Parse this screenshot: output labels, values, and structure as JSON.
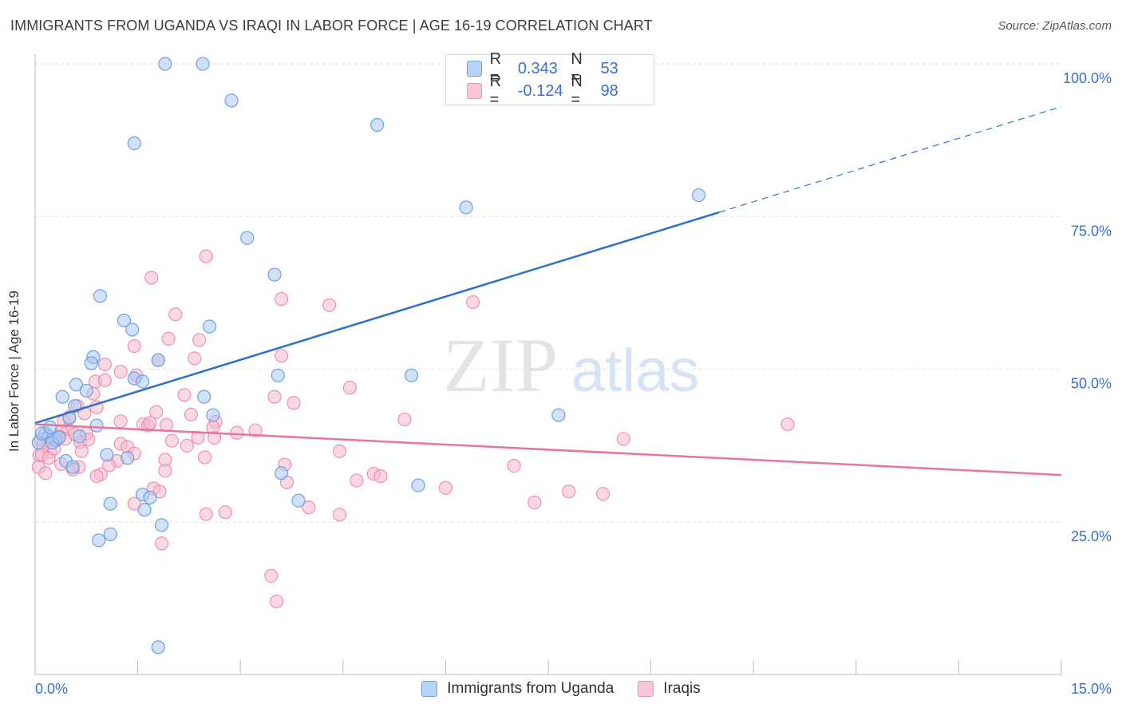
{
  "header": {
    "title": "IMMIGRANTS FROM UGANDA VS IRAQI IN LABOR FORCE | AGE 16-19 CORRELATION CHART",
    "source": "Source: ZipAtlas.com"
  },
  "watermark": {
    "zip": "ZIP",
    "atlas": "atlas"
  },
  "legend_top": {
    "rows": [
      {
        "r_label": "R =",
        "r_value": "0.343",
        "n_label": "N =",
        "n_value": "53"
      },
      {
        "r_label": "R =",
        "r_value": "-0.124",
        "n_label": "N =",
        "n_value": "98"
      }
    ]
  },
  "chart_data": {
    "type": "scatter",
    "title": "IMMIGRANTS FROM UGANDA VS IRAQI IN LABOR FORCE | AGE 16-19 CORRELATION CHART",
    "ylabel": "In Labor Force | Age 16-19",
    "xlim": [
      0,
      15
    ],
    "ylim": [
      0,
      102
    ],
    "x_tick_labels": [
      "0.0%",
      "15.0%"
    ],
    "y_ticks": [
      25,
      50,
      75,
      100
    ],
    "y_tick_labels": [
      "25.0%",
      "50.0%",
      "75.0%",
      "100.0%"
    ],
    "grid": true,
    "legend_position": "top-center",
    "colors": {
      "uganda_fill": "#a9c8f2",
      "uganda_stroke": "#6f9fe0",
      "uganda_line": "#2f6fcc",
      "iraqi_fill": "#f7b9cc",
      "iraqi_stroke": "#ee8fae",
      "iraqi_line": "#e8739c",
      "tick_text": "#3a6fd0",
      "grid": "#e3e3e3"
    },
    "series": [
      {
        "name": "Immigrants from Uganda",
        "r": 0.343,
        "n": 53,
        "trend": {
          "x0": 0,
          "y0": 41.2,
          "x1": 10.0,
          "y1": 75.7,
          "dash_to_x": 15.0,
          "dash_to_y": 93.0
        },
        "points": [
          [
            1.9,
            100
          ],
          [
            2.45,
            100
          ],
          [
            2.87,
            94
          ],
          [
            5.0,
            90
          ],
          [
            1.45,
            87
          ],
          [
            9.7,
            78.5
          ],
          [
            6.3,
            76.5
          ],
          [
            3.1,
            71.5
          ],
          [
            3.5,
            65.5
          ],
          [
            0.95,
            62
          ],
          [
            1.3,
            58
          ],
          [
            1.42,
            56.5
          ],
          [
            2.55,
            57
          ],
          [
            0.85,
            52
          ],
          [
            0.82,
            51
          ],
          [
            1.8,
            51.5
          ],
          [
            3.55,
            49
          ],
          [
            5.5,
            49
          ],
          [
            1.45,
            48.5
          ],
          [
            1.57,
            48
          ],
          [
            0.6,
            47.5
          ],
          [
            0.75,
            46.5
          ],
          [
            0.4,
            45.5
          ],
          [
            2.47,
            45.5
          ],
          [
            0.58,
            44
          ],
          [
            7.65,
            42.5
          ],
          [
            2.6,
            42.5
          ],
          [
            0.5,
            42
          ],
          [
            0.9,
            40.8
          ],
          [
            0.15,
            39.5
          ],
          [
            0.2,
            39
          ],
          [
            0.3,
            38.5
          ],
          [
            0.25,
            38
          ],
          [
            0.65,
            39
          ],
          [
            1.05,
            36
          ],
          [
            1.35,
            35.5
          ],
          [
            0.45,
            35
          ],
          [
            0.55,
            34
          ],
          [
            3.6,
            33
          ],
          [
            5.6,
            31
          ],
          [
            1.57,
            29.5
          ],
          [
            1.68,
            29
          ],
          [
            1.1,
            28
          ],
          [
            3.85,
            28.5
          ],
          [
            1.6,
            27
          ],
          [
            1.85,
            24.5
          ],
          [
            1.1,
            23
          ],
          [
            0.93,
            22
          ],
          [
            1.8,
            4.5
          ],
          [
            0.05,
            38
          ],
          [
            0.1,
            39.5
          ],
          [
            0.22,
            40.5
          ],
          [
            0.35,
            38.8
          ]
        ]
      },
      {
        "name": "Iraqis",
        "r": -0.124,
        "n": 98,
        "trend": {
          "x0": 0,
          "y0": 41.0,
          "x1": 15.0,
          "y1": 32.7
        },
        "points": [
          [
            2.5,
            68.5
          ],
          [
            1.7,
            65
          ],
          [
            3.6,
            61.5
          ],
          [
            6.4,
            61
          ],
          [
            4.3,
            60.5
          ],
          [
            2.05,
            59
          ],
          [
            1.95,
            55
          ],
          [
            2.4,
            54.8
          ],
          [
            1.45,
            53.8
          ],
          [
            3.6,
            52.2
          ],
          [
            1.8,
            51.5
          ],
          [
            2.33,
            51.8
          ],
          [
            1.02,
            50.8
          ],
          [
            1.25,
            49.6
          ],
          [
            1.48,
            49
          ],
          [
            0.88,
            48
          ],
          [
            1.02,
            48.2
          ],
          [
            4.6,
            47
          ],
          [
            0.85,
            46
          ],
          [
            2.18,
            45.8
          ],
          [
            3.5,
            45.5
          ],
          [
            3.78,
            44.5
          ],
          [
            0.62,
            44
          ],
          [
            0.72,
            42.8
          ],
          [
            1.77,
            43
          ],
          [
            2.28,
            42.6
          ],
          [
            5.4,
            41.8
          ],
          [
            0.42,
            41.5
          ],
          [
            0.5,
            42.2
          ],
          [
            1.25,
            41.5
          ],
          [
            1.58,
            41
          ],
          [
            1.65,
            40.8
          ],
          [
            1.68,
            41.2
          ],
          [
            2.64,
            41.4
          ],
          [
            0.48,
            40.2
          ],
          [
            0.38,
            39.8
          ],
          [
            0.75,
            39.5
          ],
          [
            2.95,
            39.6
          ],
          [
            3.22,
            40
          ],
          [
            0.3,
            38.3
          ],
          [
            0.44,
            38.6
          ],
          [
            0.66,
            38.1
          ],
          [
            2.0,
            38.3
          ],
          [
            1.25,
            37.8
          ],
          [
            2.22,
            37.5
          ],
          [
            2.38,
            38.8
          ],
          [
            2.62,
            38.8
          ],
          [
            8.6,
            38.6
          ],
          [
            11.0,
            41
          ],
          [
            0.12,
            37.5
          ],
          [
            0.22,
            36.5
          ],
          [
            0.68,
            36.6
          ],
          [
            1.35,
            37.3
          ],
          [
            1.45,
            36.2
          ],
          [
            4.45,
            36.6
          ],
          [
            0.06,
            35.9
          ],
          [
            1.2,
            35
          ],
          [
            1.9,
            35.2
          ],
          [
            2.48,
            35.6
          ],
          [
            0.38,
            34.5
          ],
          [
            0.64,
            34
          ],
          [
            1.08,
            34.3
          ],
          [
            3.65,
            34.4
          ],
          [
            7.0,
            34.2
          ],
          [
            0.55,
            33.6
          ],
          [
            1.9,
            33.4
          ],
          [
            0.96,
            32.8
          ],
          [
            0.9,
            32.5
          ],
          [
            4.95,
            32.9
          ],
          [
            5.05,
            32.5
          ],
          [
            4.7,
            31.8
          ],
          [
            3.68,
            31.5
          ],
          [
            6.0,
            30.6
          ],
          [
            1.73,
            30.5
          ],
          [
            1.82,
            30
          ],
          [
            7.8,
            30
          ],
          [
            8.3,
            29.6
          ],
          [
            7.3,
            28.2
          ],
          [
            1.45,
            28
          ],
          [
            4.0,
            27.4
          ],
          [
            2.5,
            26.3
          ],
          [
            2.78,
            26.6
          ],
          [
            4.45,
            26.2
          ],
          [
            1.85,
            21.5
          ],
          [
            3.45,
            16.2
          ],
          [
            3.53,
            12
          ],
          [
            0.05,
            34
          ],
          [
            0.1,
            36
          ],
          [
            0.15,
            33
          ],
          [
            0.2,
            35.5
          ],
          [
            0.28,
            37
          ],
          [
            0.35,
            39
          ],
          [
            0.08,
            38.5
          ],
          [
            0.9,
            43.8
          ],
          [
            0.58,
            39.4
          ],
          [
            0.78,
            38.5
          ],
          [
            1.92,
            40.9
          ],
          [
            2.6,
            40.5
          ]
        ]
      }
    ]
  },
  "x_labels": {
    "min": "0.0%",
    "max": "15.0%"
  },
  "bottom_legend": {
    "series1": "Immigrants from Uganda",
    "series2": "Iraqis"
  }
}
